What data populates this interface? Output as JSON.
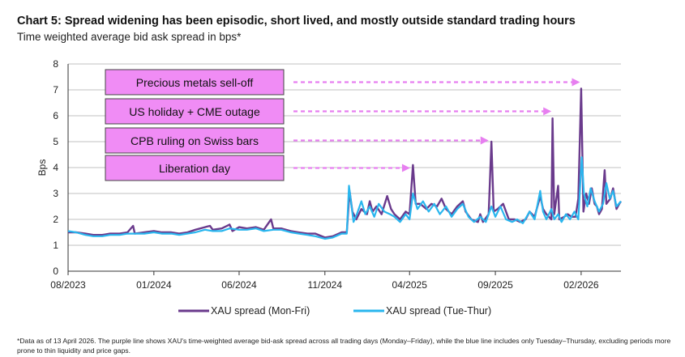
{
  "header": {
    "title": "Chart 5: Spread widening has been episodic, short lived, and mostly outside standard trading hours",
    "subtitle": "Time weighted average bid ask spread in bps*"
  },
  "footnote": "*Data as of 13 April 2026. The purple line shows XAU's time-weighted average bid-ask spread across all trading days (Monday–Friday), while the blue line includes only Tuesday–Thursday, excluding periods more prone to thin liquidity and price gaps.",
  "colors": {
    "purple": "#6a3a8c",
    "blue": "#29b6ee",
    "annotation_fill": "#f08cf5",
    "annotation_arrow": "#e77ff0",
    "grid": "#c0c0c0"
  },
  "chart_data": {
    "type": "line",
    "title": "Chart 5: Spread widening has been episodic, short lived, and mostly outside standard trading hours",
    "subtitle": "Time weighted average bid ask spread in bps*",
    "xlabel": "",
    "ylabel": "Bps",
    "ylim": [
      0,
      8
    ],
    "yticks": [
      "0",
      "1",
      "2",
      "3",
      "4",
      "5",
      "6",
      "7",
      "8"
    ],
    "xticks": [
      "08/2023",
      "01/2024",
      "06/2024",
      "11/2024",
      "04/2025",
      "09/2025",
      "02/2026"
    ],
    "xlim": [
      "2023-08-01",
      "2026-04-13"
    ],
    "grid": "horizontal",
    "legend_position": "bottom",
    "series": [
      {
        "name": "XAU spread (Mon-Fri)",
        "color": "#6a3a8c",
        "points": [
          [
            "2023-08-01",
            1.5
          ],
          [
            "2023-08-15",
            1.5
          ],
          [
            "2023-09-01",
            1.45
          ],
          [
            "2023-09-15",
            1.4
          ],
          [
            "2023-10-01",
            1.4
          ],
          [
            "2023-10-15",
            1.45
          ],
          [
            "2023-11-01",
            1.45
          ],
          [
            "2023-11-15",
            1.5
          ],
          [
            "2023-11-25",
            1.75
          ],
          [
            "2023-11-28",
            1.45
          ],
          [
            "2023-12-15",
            1.5
          ],
          [
            "2024-01-01",
            1.55
          ],
          [
            "2024-01-15",
            1.5
          ],
          [
            "2024-02-01",
            1.5
          ],
          [
            "2024-02-15",
            1.45
          ],
          [
            "2024-03-01",
            1.5
          ],
          [
            "2024-03-15",
            1.6
          ],
          [
            "2024-04-01",
            1.7
          ],
          [
            "2024-04-10",
            1.75
          ],
          [
            "2024-04-15",
            1.6
          ],
          [
            "2024-05-01",
            1.65
          ],
          [
            "2024-05-15",
            1.8
          ],
          [
            "2024-05-20",
            1.55
          ],
          [
            "2024-06-01",
            1.7
          ],
          [
            "2024-06-15",
            1.65
          ],
          [
            "2024-07-01",
            1.7
          ],
          [
            "2024-07-15",
            1.6
          ],
          [
            "2024-07-28",
            2.0
          ],
          [
            "2024-08-01",
            1.65
          ],
          [
            "2024-08-15",
            1.65
          ],
          [
            "2024-09-01",
            1.55
          ],
          [
            "2024-09-15",
            1.5
          ],
          [
            "2024-10-01",
            1.45
          ],
          [
            "2024-10-15",
            1.45
          ],
          [
            "2024-11-01",
            1.3
          ],
          [
            "2024-11-15",
            1.35
          ],
          [
            "2024-12-01",
            1.5
          ],
          [
            "2024-12-10",
            1.5
          ],
          [
            "2024-12-15",
            3.1
          ],
          [
            "2024-12-20",
            2.3
          ],
          [
            "2024-12-27",
            2.0
          ],
          [
            "2025-01-05",
            2.4
          ],
          [
            "2025-01-15",
            2.2
          ],
          [
            "2025-01-20",
            2.7
          ],
          [
            "2025-01-25",
            2.3
          ],
          [
            "2025-02-01",
            2.5
          ],
          [
            "2025-02-10",
            2.2
          ],
          [
            "2025-02-20",
            2.9
          ],
          [
            "2025-02-27",
            2.4
          ],
          [
            "2025-03-05",
            2.2
          ],
          [
            "2025-03-15",
            2.0
          ],
          [
            "2025-03-25",
            2.3
          ],
          [
            "2025-04-01",
            2.2
          ],
          [
            "2025-04-07",
            4.1
          ],
          [
            "2025-04-12",
            2.6
          ],
          [
            "2025-04-20",
            2.6
          ],
          [
            "2025-05-01",
            2.4
          ],
          [
            "2025-05-10",
            2.6
          ],
          [
            "2025-05-20",
            2.5
          ],
          [
            "2025-05-28",
            2.8
          ],
          [
            "2025-06-05",
            2.4
          ],
          [
            "2025-06-15",
            2.2
          ],
          [
            "2025-06-25",
            2.5
          ],
          [
            "2025-07-05",
            2.7
          ],
          [
            "2025-07-10",
            2.3
          ],
          [
            "2025-07-20",
            2.0
          ],
          [
            "2025-08-01",
            1.9
          ],
          [
            "2025-08-05",
            2.2
          ],
          [
            "2025-08-10",
            1.9
          ],
          [
            "2025-08-20",
            2.2
          ],
          [
            "2025-08-25",
            5.0
          ],
          [
            "2025-08-29",
            2.3
          ],
          [
            "2025-09-05",
            2.4
          ],
          [
            "2025-09-15",
            2.6
          ],
          [
            "2025-09-25",
            2.0
          ],
          [
            "2025-10-05",
            2.0
          ],
          [
            "2025-10-15",
            1.9
          ],
          [
            "2025-10-25",
            2.0
          ],
          [
            "2025-11-01",
            2.3
          ],
          [
            "2025-11-10",
            2.1
          ],
          [
            "2025-11-20",
            2.9
          ],
          [
            "2025-11-25",
            2.4
          ],
          [
            "2025-12-01",
            2.2
          ],
          [
            "2025-12-10",
            2.0
          ],
          [
            "2025-12-12",
            5.9
          ],
          [
            "2025-12-15",
            2.2
          ],
          [
            "2025-12-22",
            3.3
          ],
          [
            "2025-12-24",
            2.0
          ],
          [
            "2026-01-02",
            2.1
          ],
          [
            "2026-01-08",
            2.2
          ],
          [
            "2026-01-15",
            2.1
          ],
          [
            "2026-01-22",
            2.1
          ],
          [
            "2026-01-27",
            2.8
          ],
          [
            "2026-02-01",
            7.05
          ],
          [
            "2026-02-05",
            2.3
          ],
          [
            "2026-02-10",
            3.0
          ],
          [
            "2026-02-15",
            2.6
          ],
          [
            "2026-02-20",
            3.2
          ],
          [
            "2026-02-25",
            2.6
          ],
          [
            "2026-03-01",
            2.5
          ],
          [
            "2026-03-05",
            2.2
          ],
          [
            "2026-03-10",
            2.4
          ],
          [
            "2026-03-15",
            3.9
          ],
          [
            "2026-03-18",
            2.6
          ],
          [
            "2026-03-25",
            2.8
          ],
          [
            "2026-03-30",
            3.2
          ],
          [
            "2026-04-05",
            2.4
          ],
          [
            "2026-04-10",
            2.6
          ],
          [
            "2026-04-13",
            2.7
          ]
        ]
      },
      {
        "name": "XAU spread (Tue-Thur)",
        "color": "#29b6ee",
        "points": [
          [
            "2023-08-01",
            1.55
          ],
          [
            "2023-08-15",
            1.5
          ],
          [
            "2023-09-01",
            1.4
          ],
          [
            "2023-09-15",
            1.35
          ],
          [
            "2023-10-01",
            1.35
          ],
          [
            "2023-10-15",
            1.4
          ],
          [
            "2023-11-01",
            1.4
          ],
          [
            "2023-11-15",
            1.45
          ],
          [
            "2023-12-01",
            1.45
          ],
          [
            "2023-12-15",
            1.45
          ],
          [
            "2024-01-01",
            1.5
          ],
          [
            "2024-01-15",
            1.45
          ],
          [
            "2024-02-01",
            1.45
          ],
          [
            "2024-02-15",
            1.4
          ],
          [
            "2024-03-01",
            1.45
          ],
          [
            "2024-03-15",
            1.5
          ],
          [
            "2024-04-01",
            1.6
          ],
          [
            "2024-04-15",
            1.55
          ],
          [
            "2024-05-01",
            1.55
          ],
          [
            "2024-05-15",
            1.65
          ],
          [
            "2024-06-01",
            1.6
          ],
          [
            "2024-06-15",
            1.6
          ],
          [
            "2024-07-01",
            1.65
          ],
          [
            "2024-07-15",
            1.55
          ],
          [
            "2024-08-01",
            1.6
          ],
          [
            "2024-08-15",
            1.6
          ],
          [
            "2024-09-01",
            1.5
          ],
          [
            "2024-09-15",
            1.45
          ],
          [
            "2024-10-01",
            1.4
          ],
          [
            "2024-10-15",
            1.35
          ],
          [
            "2024-11-01",
            1.25
          ],
          [
            "2024-11-15",
            1.3
          ],
          [
            "2024-12-01",
            1.45
          ],
          [
            "2024-12-10",
            1.45
          ],
          [
            "2024-12-14",
            3.3
          ],
          [
            "2024-12-18",
            2.6
          ],
          [
            "2024-12-22",
            1.9
          ],
          [
            "2024-12-28",
            2.2
          ],
          [
            "2025-01-05",
            2.7
          ],
          [
            "2025-01-12",
            2.2
          ],
          [
            "2025-01-20",
            2.5
          ],
          [
            "2025-01-28",
            2.1
          ],
          [
            "2025-02-05",
            2.6
          ],
          [
            "2025-02-15",
            2.3
          ],
          [
            "2025-02-25",
            2.2
          ],
          [
            "2025-03-05",
            2.1
          ],
          [
            "2025-03-15",
            1.9
          ],
          [
            "2025-03-25",
            2.2
          ],
          [
            "2025-04-01",
            2.0
          ],
          [
            "2025-04-07",
            3.0
          ],
          [
            "2025-04-15",
            2.4
          ],
          [
            "2025-04-25",
            2.7
          ],
          [
            "2025-05-05",
            2.3
          ],
          [
            "2025-05-15",
            2.6
          ],
          [
            "2025-05-25",
            2.2
          ],
          [
            "2025-06-05",
            2.5
          ],
          [
            "2025-06-15",
            2.1
          ],
          [
            "2025-06-25",
            2.4
          ],
          [
            "2025-07-05",
            2.6
          ],
          [
            "2025-07-15",
            2.1
          ],
          [
            "2025-07-25",
            1.9
          ],
          [
            "2025-08-05",
            2.1
          ],
          [
            "2025-08-15",
            1.9
          ],
          [
            "2025-08-25",
            2.5
          ],
          [
            "2025-09-01",
            2.1
          ],
          [
            "2025-09-10",
            2.5
          ],
          [
            "2025-09-20",
            2.0
          ],
          [
            "2025-10-01",
            1.9
          ],
          [
            "2025-10-10",
            2.0
          ],
          [
            "2025-10-20",
            1.85
          ],
          [
            "2025-11-01",
            2.3
          ],
          [
            "2025-11-10",
            2.0
          ],
          [
            "2025-11-20",
            3.1
          ],
          [
            "2025-11-25",
            2.3
          ],
          [
            "2025-12-01",
            2.0
          ],
          [
            "2025-12-10",
            2.4
          ],
          [
            "2025-12-15",
            2.0
          ],
          [
            "2025-12-22",
            2.2
          ],
          [
            "2025-12-28",
            1.9
          ],
          [
            "2026-01-05",
            2.2
          ],
          [
            "2026-01-12",
            2.0
          ],
          [
            "2026-01-20",
            2.3
          ],
          [
            "2026-01-27",
            2.0
          ],
          [
            "2026-02-02",
            4.4
          ],
          [
            "2026-02-06",
            3.0
          ],
          [
            "2026-02-12",
            2.5
          ],
          [
            "2026-02-18",
            3.2
          ],
          [
            "2026-02-25",
            2.7
          ],
          [
            "2026-03-05",
            2.3
          ],
          [
            "2026-03-12",
            2.6
          ],
          [
            "2026-03-18",
            3.4
          ],
          [
            "2026-03-24",
            2.8
          ],
          [
            "2026-03-30",
            3.1
          ],
          [
            "2026-04-05",
            2.5
          ],
          [
            "2026-04-13",
            2.7
          ]
        ]
      }
    ],
    "annotations": [
      {
        "label": "Precious metals sell-off",
        "arrow_to": "2026-01-30"
      },
      {
        "label": "US holiday + CME outage",
        "arrow_to": "2025-12-10"
      },
      {
        "label": "CPB ruling on Swiss bars",
        "arrow_to": "2025-08-20"
      },
      {
        "label": "Liberation day",
        "arrow_to": "2025-04-02"
      }
    ]
  }
}
